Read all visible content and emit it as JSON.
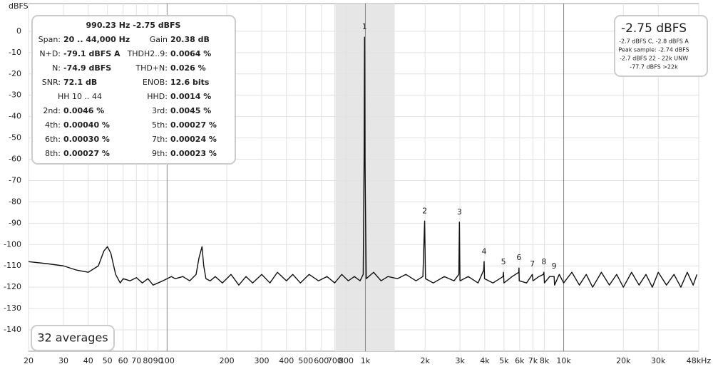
{
  "chart_data": {
    "type": "line",
    "y_axis_label": "dBFS",
    "log_x": true,
    "grid": true,
    "xlim": [
      20,
      48000
    ],
    "ylim": [
      -150,
      13
    ],
    "xticks": [
      20,
      30,
      40,
      50,
      60,
      70,
      80,
      90,
      100,
      200,
      300,
      400,
      500,
      600,
      700,
      800,
      {
        "value": 1000,
        "label": "1k"
      },
      {
        "value": 2000,
        "label": "2k"
      },
      {
        "value": 3000,
        "label": "3k"
      },
      {
        "value": 4000,
        "label": "4k"
      },
      {
        "value": 5000,
        "label": "5k"
      },
      {
        "value": 6000,
        "label": "6k"
      },
      {
        "value": 7000,
        "label": "7k"
      },
      {
        "value": 8000,
        "label": "8k"
      },
      {
        "value": 10000,
        "label": "10k"
      },
      {
        "value": 20000,
        "label": "20k"
      },
      {
        "value": 30000,
        "label": "30k"
      },
      {
        "value": 48000,
        "label": "48kHz"
      }
    ],
    "yticks": [
      0,
      -10,
      -20,
      -30,
      -40,
      -50,
      -60,
      -70,
      -80,
      -90,
      -100,
      -110,
      -120,
      -130,
      -140
    ],
    "shaded_range": [
      706,
      1406
    ],
    "shade_color": "#e6e6e6",
    "x": [
      20,
      25,
      30,
      35,
      40,
      45,
      48,
      50,
      52,
      55,
      58,
      60,
      65,
      70,
      75,
      80,
      85,
      90,
      95,
      100,
      105,
      110,
      120,
      130,
      140,
      145,
      150,
      153,
      157,
      165,
      175,
      190,
      210,
      230,
      250,
      270,
      300,
      330,
      360,
      400,
      430,
      470,
      520,
      580,
      640,
      700,
      760,
      820,
      880,
      940,
      975,
      985,
      990.23,
      995,
      1010,
      1100,
      1200,
      1300,
      1450,
      1600,
      1800,
      1950,
      1990,
      2010,
      2200,
      2500,
      2800,
      2960,
      2980,
      3000,
      3300,
      3700,
      3950,
      3970,
      3990,
      4400,
      4950,
      4970,
      5000,
      5500,
      5940,
      5950,
      5970,
      6500,
      6950,
      7000,
      7500,
      7900,
      7950,
      8000,
      8500,
      8950,
      9000,
      9500,
      10000,
      11000,
      12000,
      13000,
      14000,
      15500,
      17000,
      18500,
      20000,
      22000,
      24000,
      26000,
      28000,
      30000,
      33000,
      36000,
      39000,
      42000,
      45000,
      47000
    ],
    "series": [
      {
        "color": "#111111",
        "values": [
          -108,
          -109,
          -110,
          -112,
          -113,
          -110,
          -103,
          -101,
          -104,
          -114,
          -118,
          -116,
          -117,
          -115.5,
          -118,
          -116,
          -119,
          -118,
          -117,
          -116,
          -115,
          -116,
          -115,
          -117,
          -114,
          -106,
          -101,
          -110,
          -116,
          -117,
          -115,
          -118,
          -114,
          -119,
          -115,
          -118,
          -114,
          -118,
          -113,
          -117,
          -114,
          -118,
          -114,
          -117,
          -115,
          -118,
          -114,
          -117,
          -115,
          -117,
          -114,
          -60,
          -2.75,
          -60,
          -116,
          -113,
          -117,
          -115,
          -116,
          -114,
          -117,
          -115,
          -89,
          -116,
          -118,
          -115,
          -117,
          -114,
          -89.5,
          -117,
          -115,
          -118,
          -112,
          -108,
          -116,
          -118,
          -115,
          -113,
          -118,
          -115,
          -113,
          -111,
          -117,
          -118,
          -114,
          -117,
          -115,
          -114,
          -113,
          -118,
          -115,
          -115,
          -119,
          -114,
          -118,
          -113,
          -119,
          -114,
          -120,
          -113,
          -119,
          -114,
          -120,
          -113,
          -119,
          -114,
          -120,
          -113,
          -119,
          -114,
          -120,
          -113,
          -119,
          -114
        ]
      }
    ],
    "harmonics": {
      "labels": [
        "1",
        "2",
        "3",
        "4",
        "5",
        "6",
        "7",
        "8",
        "9"
      ],
      "x": [
        990.23,
        1990,
        2980,
        3970,
        4970,
        5950,
        6950,
        7950,
        8950
      ],
      "values": [
        -2.75,
        -89,
        -89.5,
        -108,
        -113,
        -111,
        -114,
        -113,
        -115
      ]
    }
  },
  "info_panel": {
    "headline": "990.23 Hz  -2.75 dBFS",
    "rows": [
      [
        {
          "label": "Span:",
          "value": "20 .. 44,000 Hz"
        },
        {
          "label": "Gain",
          "value": "20.38 dB"
        }
      ],
      [
        {
          "label": "N+D:",
          "value": "-79.1 dBFS A"
        },
        {
          "label": "THDH2..9:",
          "value": "0.0064 %"
        }
      ],
      [
        {
          "label": "N:",
          "value": "-74.9 dBFS"
        },
        {
          "label": "THD+N:",
          "value": "0.026 %"
        }
      ],
      [
        {
          "label": "SNR:",
          "value": "72.1 dB"
        },
        {
          "label": "ENOB:",
          "value": "12.6 bits"
        }
      ],
      [
        {
          "label": "HH 10 .. 44"
        },
        {
          "label": "HHD:",
          "value": "0.0014 %"
        }
      ],
      [
        {
          "label": "2nd:",
          "value": "0.0046 %"
        },
        {
          "label": "3rd:",
          "value": "0.0045 %"
        }
      ],
      [
        {
          "label": "4th:",
          "value": "0.00040 %"
        },
        {
          "label": "5th:",
          "value": "0.00027 %"
        }
      ],
      [
        {
          "label": "6th:",
          "value": "0.00030 %"
        },
        {
          "label": "7th:",
          "value": "0.00024 %"
        }
      ],
      [
        {
          "label": "8th:",
          "value": "0.00027 %"
        },
        {
          "label": "9th:",
          "value": "0.00023 %"
        }
      ]
    ]
  },
  "level_panel": {
    "level": "-2.75 dBFS",
    "lines": [
      "-2.7 dBFS C, -2.8 dBFS A",
      "Peak sample: -2.74 dBFS",
      "-2.7 dBFS 22 - 22k UNW",
      "-77.7 dBFS >22k"
    ]
  },
  "averages": "32 averages"
}
